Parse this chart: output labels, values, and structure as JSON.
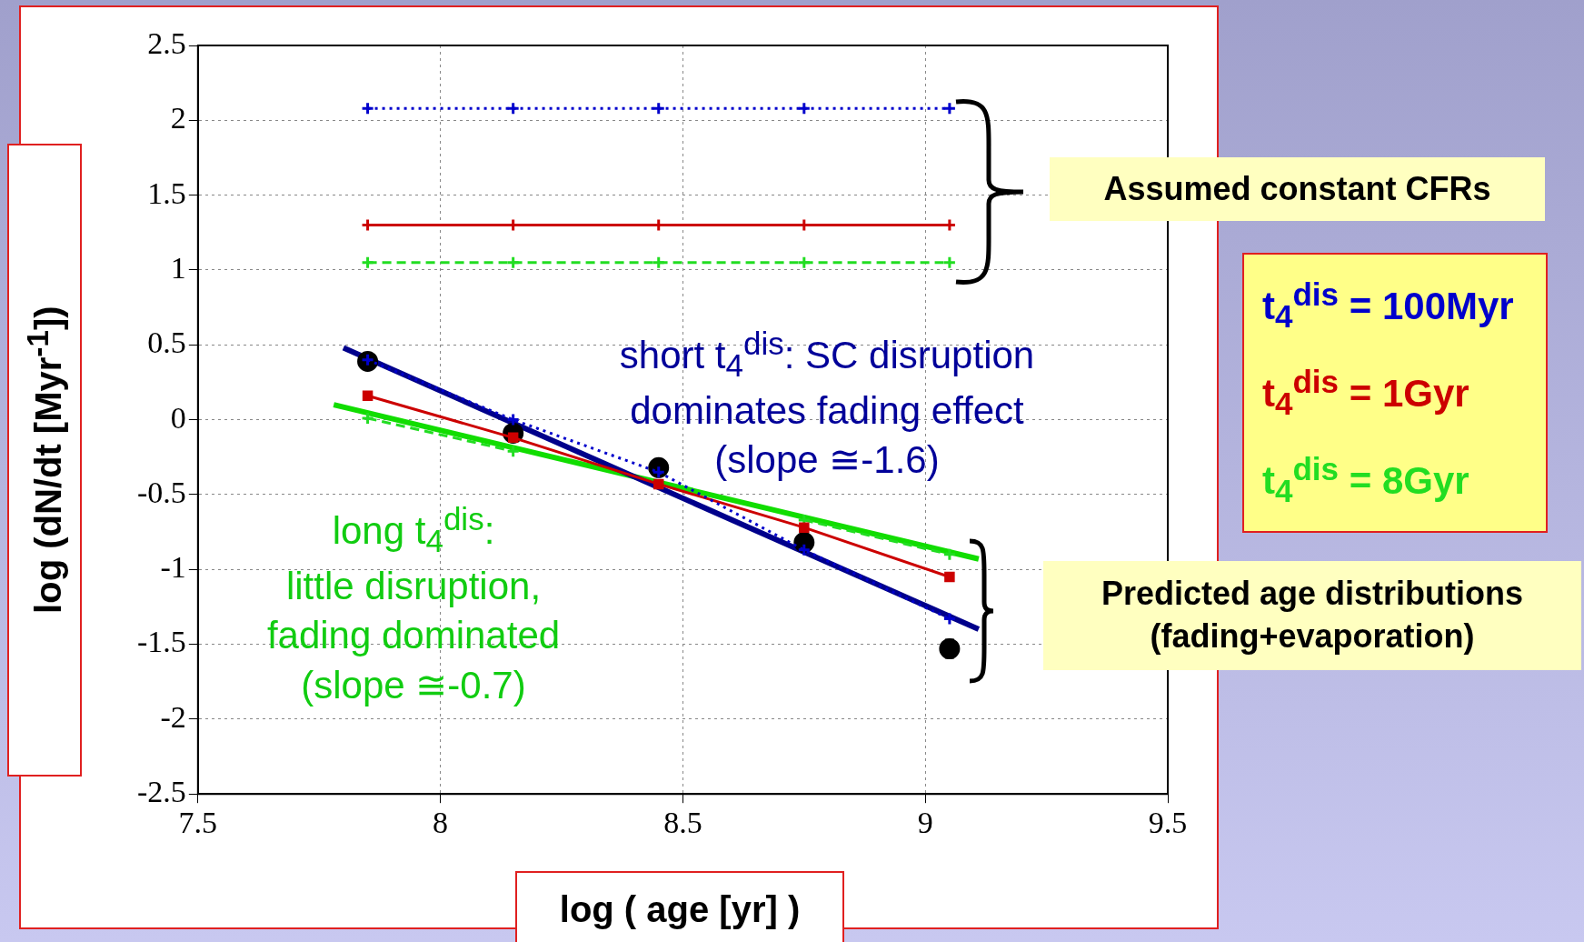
{
  "chart_data": {
    "type": "line",
    "xlabel": "log ( age [yr] )",
    "ylabel": "log (dN/dt [Myr$^{-1}$])",
    "xlim": [
      7.5,
      9.5
    ],
    "xticks": [
      7.5,
      8,
      8.5,
      9,
      9.5
    ],
    "ylim": [
      -2.5,
      2.5
    ],
    "yticks": [
      -2.5,
      -2,
      -1.5,
      -1,
      -0.5,
      0,
      0.5,
      1,
      1.5,
      2,
      2.5
    ],
    "grid": true,
    "legend": "right",
    "x": [
      7.85,
      8.15,
      8.45,
      8.75,
      9.05
    ],
    "series": [
      {
        "color": "#0000cc",
        "values": [
          2.08,
          2.08,
          2.08,
          2.08,
          2.08
        ],
        "marker": "cross",
        "line_style": "dotted"
      },
      {
        "color": "#cc0000",
        "values": [
          1.3,
          1.3,
          1.3,
          1.3,
          1.3
        ],
        "marker": "cross",
        "line_style": "solid"
      },
      {
        "color": "#22dd22",
        "values": [
          1.05,
          1.05,
          1.05,
          1.05,
          1.05
        ],
        "marker": "cross",
        "line_style": "dashed"
      },
      {
        "name": "t$_{4}$$^{dis}$ = 100Myr",
        "color": "#0000cc",
        "values": [
          0.4,
          0.0,
          -0.35,
          -0.87,
          -1.33
        ],
        "marker": "cross",
        "line_style": "dotted"
      },
      {
        "name": "t$_{4}$$^{dis}$ = 1Gyr",
        "color": "#cc0000",
        "values": [
          0.16,
          -0.12,
          -0.43,
          -0.72,
          -1.05
        ],
        "marker": "square",
        "line_style": "solid"
      },
      {
        "name": "t$_{4}$$^{dis}$ = 8Gyr",
        "color": "#22dd22",
        "values": [
          0.01,
          -0.21,
          null,
          -0.67,
          -0.9
        ],
        "marker": "cross",
        "line_style": "dashed"
      },
      {
        "type": "scatter",
        "color": "#000000",
        "values": [
          0.39,
          -0.09,
          -0.32,
          -0.82,
          -1.53
        ],
        "errors": [
          null,
          null,
          null,
          null,
          0.06
        ],
        "marker": "circle"
      },
      {
        "type": "line",
        "color": "#00008b",
        "x": [
          7.8,
          9.11
        ],
        "values": [
          0.48,
          -1.4
        ],
        "marker": "none",
        "line_style": "solid"
      },
      {
        "type": "line",
        "color": "#11dd00",
        "x": [
          7.78,
          9.11
        ],
        "values": [
          0.1,
          -0.93
        ],
        "marker": "none",
        "line_style": "solid"
      }
    ],
    "annotations": [
      "Assumed constant CFRs",
      "Predicted age distributions\n(fading+evaporation)",
      "short t$_{4}$$^{dis}$: SC disruption\ndominates fading effect\n(slope ≅-1.6)",
      "long t$_{4}$$^{dis}$:\nlittle disruption,\nfading dominated\n(slope ≅-0.7)"
    ]
  }
}
